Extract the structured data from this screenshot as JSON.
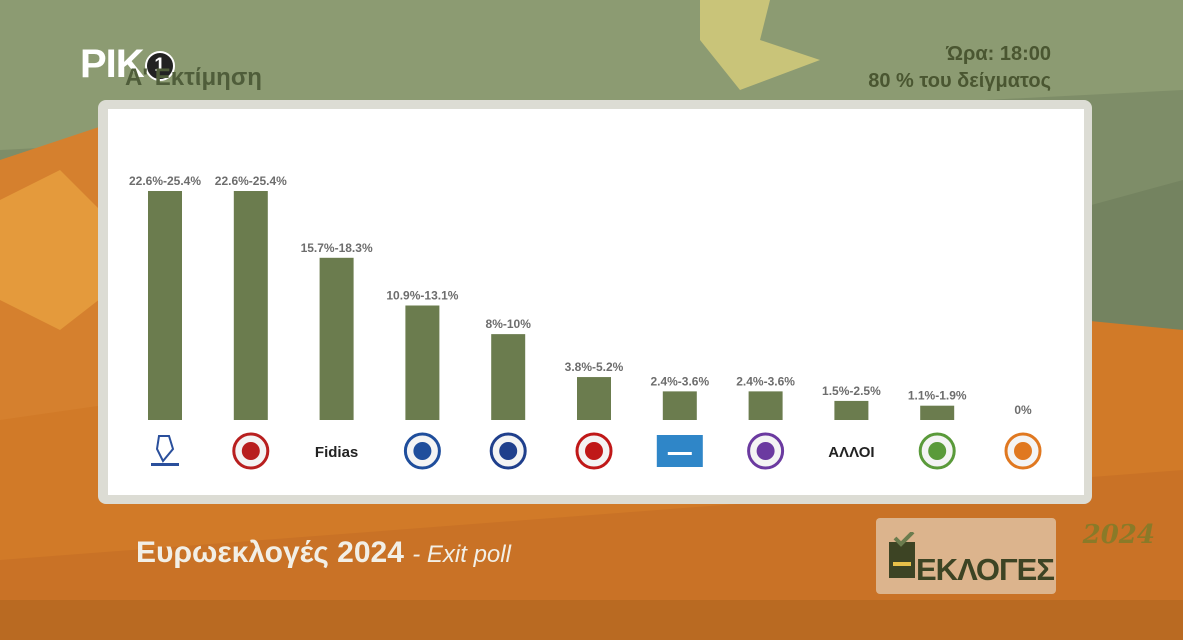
{
  "header": {
    "channel_logo": "ΡΙΚ",
    "channel_number": "1",
    "estimate_label": "Α' Εκτίμηση",
    "time_label": "Ώρα: 18:00",
    "sample_label": "80 % του δείγματος"
  },
  "footer": {
    "title": "Ευρωεκλογές 2024",
    "subtitle": "- Exit poll",
    "elections_year": "2024",
    "elections_word": "ΕΚΛΟΓΕΣ"
  },
  "colors": {
    "bar": "#6b7c4e",
    "label": "#6d6d6d",
    "background_orange": "#d5802e",
    "background_green": "#7e8d68",
    "panel": "#ffffff"
  },
  "chart_data": {
    "type": "bar",
    "categories": [
      "ΔΗΣΥ",
      "ΑΚΕΛ",
      "Fidias",
      "ΕΛΑΜ",
      "ΔΗΚΟ",
      "ΕΔΕΚ",
      "ΔΗΠΑ",
      "Volt",
      "ΑΛΛΟΙ",
      "Οικολόγοι",
      "ΑΛΜΑ"
    ],
    "category_display": [
      "",
      "",
      "Fidias",
      "",
      "",
      "",
      "",
      "",
      "ΑΛΛΟΙ",
      "",
      ""
    ],
    "category_icons": [
      "disy-logo-icon",
      "akel-logo-icon",
      "",
      "elam-logo-icon",
      "diko-logo-icon",
      "edek-logo-icon",
      "dipa-logo-icon",
      "volt-logo-icon",
      "",
      "ecologists-logo-icon",
      "alma-logo-icon"
    ],
    "range_low": [
      22.6,
      22.6,
      15.7,
      10.9,
      8,
      3.8,
      2.4,
      2.4,
      1.5,
      1.1,
      0
    ],
    "range_high": [
      25.4,
      25.4,
      18.3,
      13.1,
      10,
      5.2,
      3.6,
      3.6,
      2.5,
      1.9,
      0
    ],
    "values": [
      24,
      24,
      17,
      12,
      9,
      4.5,
      3,
      3,
      2,
      1.5,
      0
    ],
    "data_labels": [
      "22.6%-25.4%",
      "22.6%-25.4%",
      "15.7%-18.3%",
      "10.9%-13.1%",
      "8%-10%",
      "3.8%-5.2%",
      "2.4%-3.6%",
      "2.4%-3.6%",
      "1.5%-2.5%",
      "1.1%-1.9%",
      "0%"
    ],
    "ylim": [
      0,
      24
    ],
    "grid": false,
    "legend": "none",
    "xlabel": "",
    "ylabel": ""
  }
}
